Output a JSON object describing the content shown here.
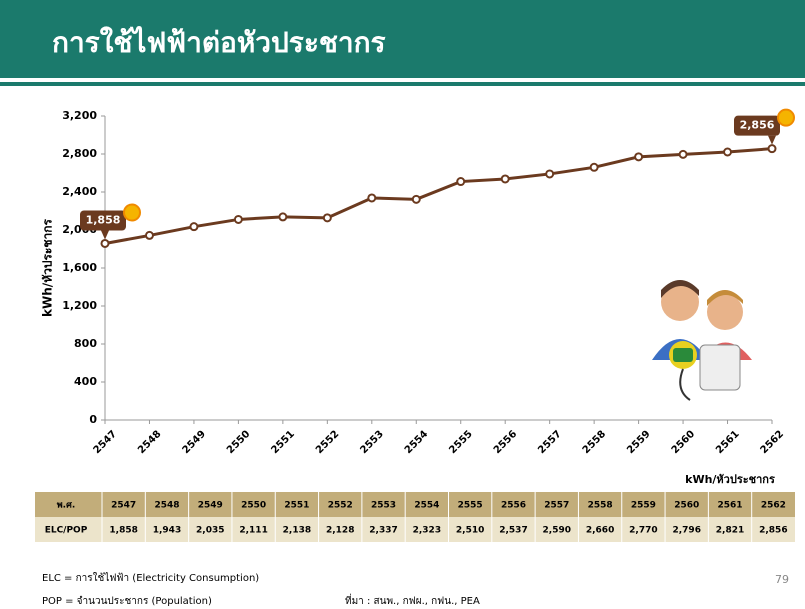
{
  "chart_data": {
    "type": "line",
    "title": "การใช้ไฟฟ้าต่อหัวประชากร",
    "y_label": "kWh/หัวประชากร",
    "categories": [
      "2547",
      "2548",
      "2549",
      "2550",
      "2551",
      "2552",
      "2553",
      "2554",
      "2555",
      "2556",
      "2557",
      "2558",
      "2559",
      "2560",
      "2561",
      "2562"
    ],
    "values": [
      1858,
      1943,
      2035,
      2111,
      2138,
      2128,
      2337,
      2323,
      2510,
      2537,
      2590,
      2660,
      2770,
      2796,
      2821,
      2856
    ],
    "value_labels": [
      "1,858",
      "1,943",
      "2,035",
      "2,111",
      "2,138",
      "2,128",
      "2,337",
      "2,323",
      "2,510",
      "2,537",
      "2,590",
      "2,660",
      "2,770",
      "2,796",
      "2,821",
      "2,856"
    ],
    "color": "#6b3a1f",
    "ylim": [
      0,
      3200
    ],
    "yticks": [
      0,
      400,
      800,
      {
        "value": 1200,
        "label": "1,200"
      },
      {
        "value": 1600,
        "label": "1,600"
      },
      {
        "value": 2000,
        "label": "2,000"
      },
      {
        "value": 2400,
        "label": "2,400"
      },
      {
        "value": 2800,
        "label": "2,800"
      },
      {
        "value": 3200,
        "label": "3,200"
      }
    ],
    "table": {
      "unit": "kWh/หัวประชากร",
      "header_label": "พ.ศ.",
      "row_label": "ELC/POP"
    }
  },
  "footer": {
    "note1": "ELC = การใช้ไฟฟ้า (Electricity Consumption)",
    "note2": "POP = จำนวนประชากร (Population)",
    "source": "ที่มา : สนพ., กฟผ., กฟน., PEA",
    "page": "79"
  }
}
